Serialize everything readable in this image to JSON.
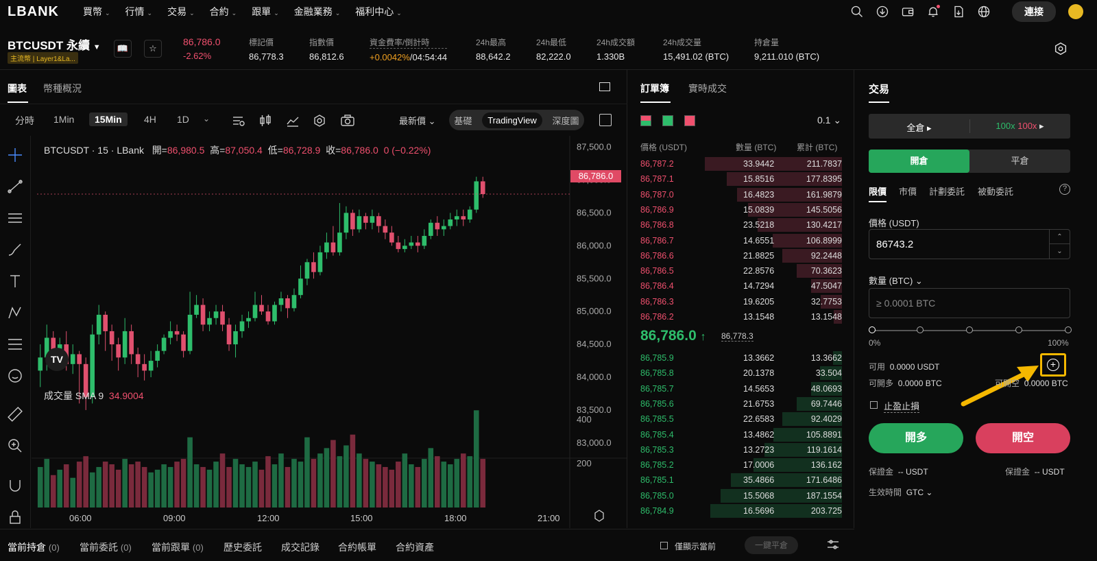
{
  "nav": {
    "logo": "LBANK",
    "items": [
      "買幣",
      "行情",
      "交易",
      "合約",
      "跟單",
      "金融業務",
      "福利中心"
    ],
    "connect": "連接",
    "icons": [
      "search-icon",
      "download-icon",
      "wallet-icon",
      "bell-icon",
      "document-icon",
      "globe-icon"
    ]
  },
  "ticker": {
    "symbol": "BTCUSDT 永續",
    "tag": "主流幣 | Layer1&La...",
    "price": "86,786.0",
    "change": "-2.62%",
    "stats": [
      {
        "label": "標記價",
        "value": "86,778.3"
      },
      {
        "label": "指數價",
        "value": "86,812.6"
      },
      {
        "label": "資金費率/倒計時",
        "value_a": "+0.0042%",
        "value_b": "/04:54:44"
      },
      {
        "label": "24h最高",
        "value": "88,642.2"
      },
      {
        "label": "24h最低",
        "value": "82,222.0"
      },
      {
        "label": "24h成交額",
        "value": "1.330B"
      },
      {
        "label": "24h成交量",
        "value": "15,491.02 (BTC)"
      },
      {
        "label": "持倉量",
        "value": "9,211.010 (BTC)"
      }
    ]
  },
  "chart": {
    "tabs": [
      "圖表",
      "幣種概況"
    ],
    "timeframes": [
      "分時",
      "1Min",
      "15Min",
      "4H",
      "1D"
    ],
    "price_mode": "最新價",
    "views": [
      "基礎",
      "TradingView",
      "深度圖"
    ],
    "info": {
      "title": "BTCUSDT · 15 · LBank",
      "open_k": "開=",
      "open": "86,980.5",
      "high_k": "高=",
      "high": "87,050.4",
      "low_k": "低=",
      "low": "86,728.9",
      "close_k": "收=",
      "close": "86,786.0",
      "chg": "0 (−0.22%)"
    },
    "last_price": "86,786.0",
    "volume_label": "成交量 SMA 9",
    "volume_val": "34.9004",
    "y_ticks": [
      "87,500.0",
      "87,000.0",
      "86,500.0",
      "86,000.0",
      "85,500.0",
      "85,000.0",
      "84,500.0",
      "84,000.0",
      "83,500.0",
      "83,000.0"
    ],
    "vol_ticks": [
      "400",
      "200"
    ],
    "x_ticks": [
      "06:00",
      "09:00",
      "12:00",
      "15:00",
      "18:00",
      "21:00"
    ]
  },
  "chart_data": {
    "type": "candlestick",
    "title": "BTCUSDT · 15 · LBank",
    "ylim": [
      82800,
      87600
    ],
    "candles": [
      [
        84100,
        84300,
        83850,
        84500
      ],
      [
        84300,
        84600,
        84100,
        84800
      ],
      [
        84600,
        84400,
        84200,
        84700
      ],
      [
        84400,
        84500,
        84300,
        84600
      ],
      [
        84500,
        84200,
        84100,
        84700
      ],
      [
        84200,
        84350,
        84050,
        84500
      ],
      [
        84350,
        84200,
        83600,
        84400
      ],
      [
        84200,
        83700,
        83500,
        84300
      ],
      [
        83700,
        84650,
        83600,
        84800
      ],
      [
        84650,
        84950,
        84500,
        85100
      ],
      [
        84950,
        84700,
        84400,
        85000
      ],
      [
        84700,
        84500,
        84250,
        84800
      ],
      [
        84500,
        84300,
        84100,
        84600
      ],
      [
        84300,
        84700,
        84200,
        84900
      ],
      [
        84700,
        84350,
        84200,
        84800
      ],
      [
        84350,
        84200,
        84000,
        84450
      ],
      [
        84200,
        84100,
        83950,
        84350
      ],
      [
        84100,
        84250,
        84000,
        84400
      ],
      [
        84250,
        84400,
        84150,
        84500
      ],
      [
        84400,
        84600,
        84350,
        84650
      ],
      [
        84600,
        84700,
        84500,
        84850
      ],
      [
        84700,
        84650,
        84550,
        84800
      ],
      [
        84650,
        84400,
        84300,
        84700
      ],
      [
        84400,
        84950,
        84350,
        85300
      ],
      [
        84950,
        85100,
        84900,
        85250
      ],
      [
        85100,
        84800,
        84700,
        85200
      ],
      [
        84800,
        84900,
        84700,
        85000
      ],
      [
        84900,
        85000,
        84800,
        85100
      ],
      [
        85000,
        84800,
        84700,
        85100
      ],
      [
        84800,
        84500,
        84400,
        84900
      ],
      [
        84500,
        84700,
        84300,
        84800
      ],
      [
        84700,
        84850,
        84600,
        84950
      ],
      [
        84850,
        84900,
        84750,
        85000
      ],
      [
        84900,
        85100,
        84850,
        85300
      ],
      [
        85100,
        85000,
        84950,
        85250
      ],
      [
        85000,
        84850,
        84800,
        85100
      ],
      [
        84850,
        85100,
        84800,
        85150
      ],
      [
        85100,
        85200,
        85000,
        85300
      ],
      [
        85200,
        85050,
        84900,
        85250
      ],
      [
        85050,
        85250,
        85000,
        85350
      ],
      [
        85250,
        85500,
        85200,
        85700
      ],
      [
        85500,
        85750,
        85400,
        85800
      ],
      [
        85750,
        85600,
        85500,
        85900
      ],
      [
        85600,
        85900,
        85550,
        86000
      ],
      [
        85900,
        86050,
        85800,
        86200
      ],
      [
        86050,
        85900,
        85850,
        86300
      ],
      [
        85900,
        86200,
        85850,
        86650
      ],
      [
        86200,
        86500,
        86100,
        86600
      ],
      [
        86500,
        86250,
        86150,
        86550
      ],
      [
        86250,
        86450,
        86200,
        86550
      ],
      [
        86450,
        86350,
        86250,
        86500
      ],
      [
        86350,
        86450,
        86250,
        86550
      ],
      [
        86450,
        86300,
        86200,
        86500
      ],
      [
        86300,
        86200,
        86100,
        86400
      ],
      [
        86200,
        86050,
        86000,
        86300
      ],
      [
        86050,
        85950,
        85900,
        86150
      ],
      [
        85950,
        86000,
        85900,
        86100
      ],
      [
        86000,
        86050,
        85950,
        86150
      ],
      [
        86050,
        86000,
        85900,
        86150
      ],
      [
        86000,
        86150,
        85950,
        86250
      ],
      [
        86150,
        86350,
        86100,
        86400
      ],
      [
        86350,
        86250,
        86150,
        86450
      ],
      [
        86250,
        86300,
        86150,
        86400
      ],
      [
        86300,
        86400,
        86250,
        86500
      ],
      [
        86400,
        86450,
        86300,
        86550
      ],
      [
        86450,
        86400,
        86300,
        86550
      ],
      [
        86400,
        86550,
        86350,
        86600
      ],
      [
        86550,
        86980,
        86500,
        87050
      ],
      [
        86980,
        86786,
        86729,
        87050
      ]
    ],
    "volume": [
      150,
      180,
      120,
      140,
      160,
      110,
      170,
      190,
      130,
      150,
      170,
      160,
      140,
      180,
      160,
      170,
      150,
      130,
      140,
      160,
      150,
      170,
      180,
      260,
      160,
      150,
      140,
      170,
      200,
      150,
      180,
      160,
      150,
      170,
      140,
      190,
      160,
      200,
      150,
      180,
      170,
      260,
      180,
      200,
      220,
      250,
      190,
      230,
      270,
      200,
      180,
      170,
      160,
      150,
      140,
      170,
      200,
      160,
      150,
      180,
      220,
      190,
      170,
      160,
      180,
      200,
      190,
      360,
      180
    ],
    "volume_max": 480
  },
  "orderbook": {
    "tabs": [
      "訂單簿",
      "實時成交"
    ],
    "precision": "0.1",
    "cols": [
      "價格 (USDT)",
      "數量 (BTC)",
      "累計 (BTC)"
    ],
    "asks": [
      {
        "p": "86,787.2",
        "q": "33.9442",
        "t": "211.7837"
      },
      {
        "p": "86,787.1",
        "q": "15.8516",
        "t": "177.8395"
      },
      {
        "p": "86,787.0",
        "q": "16.4823",
        "t": "161.9879"
      },
      {
        "p": "86,786.9",
        "q": "15.0839",
        "t": "145.5056"
      },
      {
        "p": "86,786.8",
        "q": "23.5218",
        "t": "130.4217"
      },
      {
        "p": "86,786.7",
        "q": "14.6551",
        "t": "106.8999"
      },
      {
        "p": "86,786.6",
        "q": "21.8825",
        "t": "92.2448"
      },
      {
        "p": "86,786.5",
        "q": "22.8576",
        "t": "70.3623"
      },
      {
        "p": "86,786.4",
        "q": "14.7294",
        "t": "47.5047"
      },
      {
        "p": "86,786.3",
        "q": "19.6205",
        "t": "32.7753"
      },
      {
        "p": "86,786.2",
        "q": "13.1548",
        "t": "13.1548"
      }
    ],
    "mid": "86,786.0",
    "mid_arrow": "↑",
    "mark": "86,778.3",
    "bids": [
      {
        "p": "86,785.9",
        "q": "13.3662",
        "t": "13.3662"
      },
      {
        "p": "86,785.8",
        "q": "20.1378",
        "t": "33.504"
      },
      {
        "p": "86,785.7",
        "q": "14.5653",
        "t": "48.0693"
      },
      {
        "p": "86,785.6",
        "q": "21.6753",
        "t": "69.7446"
      },
      {
        "p": "86,785.5",
        "q": "22.6583",
        "t": "92.4029"
      },
      {
        "p": "86,785.4",
        "q": "13.4862",
        "t": "105.8891"
      },
      {
        "p": "86,785.3",
        "q": "13.2723",
        "t": "119.1614"
      },
      {
        "p": "86,785.2",
        "q": "17.0006",
        "t": "136.162"
      },
      {
        "p": "86,785.1",
        "q": "35.4866",
        "t": "171.6486"
      },
      {
        "p": "86,785.0",
        "q": "15.5068",
        "t": "187.1554"
      },
      {
        "p": "86,784.9",
        "q": "16.5696",
        "t": "203.725"
      }
    ]
  },
  "trade": {
    "title": "交易",
    "margin_mode": "全倉",
    "lev_long": "100x",
    "lev_short": "100x",
    "open": "開倉",
    "close": "平倉",
    "order_tabs": [
      "限價",
      "市價",
      "計劃委託",
      "被動委託"
    ],
    "price_label": "價格 (USDT)",
    "price_value": "86743.2",
    "qty_label": "數量 (BTC)",
    "qty_placeholder": "≥ 0.0001 BTC",
    "slider_min": "0%",
    "slider_max": "100%",
    "avail_label": "可用",
    "avail_value": "0.0000 USDT",
    "can_long_label": "可開多",
    "can_long": "0.0000 BTC",
    "can_short_label": "可開空",
    "can_short": "0.0000 BTC",
    "tpsl": "止盈止損",
    "buy": "開多",
    "sell": "開空",
    "margin_label": "保證金",
    "margin_value": "-- USDT",
    "tif_label": "生效時間",
    "tif_value": "GTC"
  },
  "bottom": {
    "tabs": [
      {
        "label": "當前持倉",
        "count": "(0)"
      },
      {
        "label": "當前委託",
        "count": "(0)"
      },
      {
        "label": "當前跟單",
        "count": "(0)"
      },
      {
        "label": "歷史委託",
        "count": ""
      },
      {
        "label": "成交記錄",
        "count": ""
      },
      {
        "label": "合約帳單",
        "count": ""
      },
      {
        "label": "合約資產",
        "count": ""
      }
    ],
    "only_current": "僅顯示當前",
    "close_all": "一鍵平倉"
  },
  "colors": {
    "up": "#2ebd6b",
    "down": "#f0506e",
    "highlight": "#f5b800"
  }
}
